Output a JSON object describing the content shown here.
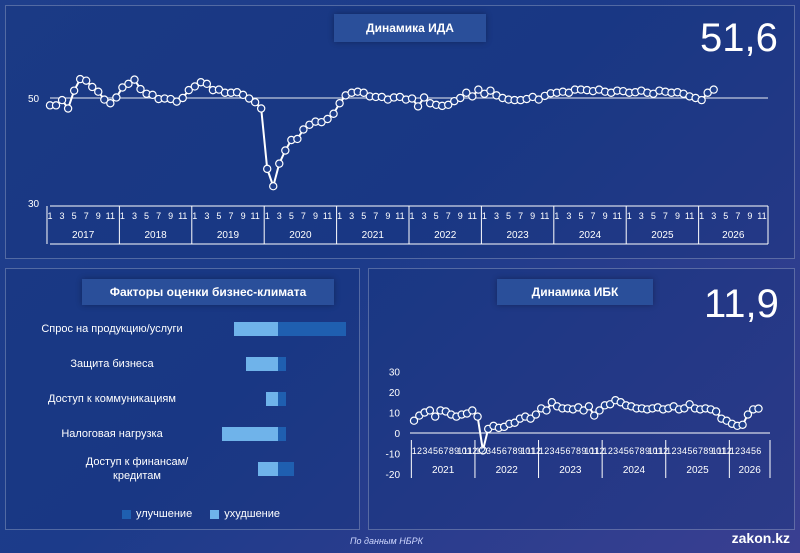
{
  "ida": {
    "title": "Динамика ИДА",
    "value": "51,6",
    "y_ticks": [
      "50",
      "30"
    ],
    "years": [
      "2017",
      "2018",
      "2019",
      "2020",
      "2021",
      "2022",
      "2023",
      "2024",
      "2025",
      "2026"
    ]
  },
  "factors": {
    "title": "Факторы оценки бизнес-климата",
    "labels": [
      "Спрос на продукцию/услуги",
      "Защита бизнеса",
      "Доступ к коммуникациям",
      "Налоговая нагрузка",
      "Доступ к финансам/кредитам"
    ],
    "legend_improve": "улучшение",
    "legend_worse": "ухудшение"
  },
  "ibk": {
    "title": "Динамика ИБК",
    "value": "11,9",
    "y_ticks": [
      "30",
      "20",
      "10",
      "0",
      "-10",
      "-20"
    ],
    "years": [
      "2021",
      "2022",
      "2023",
      "2024",
      "2025",
      "2026"
    ]
  },
  "footer": "По данным НБРК",
  "brand": "zakon.kz",
  "colors": {
    "improve": "#1f5fb0",
    "worse": "#6fb3ea",
    "line": "#ffffff"
  },
  "chart_data": [
    {
      "type": "line",
      "title": "Динамика ИДА",
      "ylim": [
        30,
        58
      ],
      "x_start": "2017-01",
      "values": [
        48.6,
        48.6,
        49.6,
        48.0,
        51.4,
        53.6,
        53.3,
        52.1,
        51.2,
        49.7,
        49.0,
        50.1,
        52.0,
        52.7,
        53.5,
        51.7,
        50.8,
        50.6,
        49.8,
        49.9,
        49.8,
        49.3,
        50.0,
        51.5,
        52.2,
        53.0,
        52.7,
        51.5,
        51.6,
        51.0,
        51.0,
        51.1,
        50.6,
        49.9,
        49.2,
        48.0,
        36.5,
        33.2,
        37.5,
        40.0,
        42.0,
        42.2,
        44.0,
        44.9,
        45.5,
        45.4,
        46.0,
        47.0,
        49.0,
        50.5,
        51.0,
        51.2,
        51.0,
        50.3,
        50.2,
        50.2,
        49.7,
        50.1,
        50.2,
        49.7,
        49.9,
        48.4,
        50.1,
        49.0,
        48.7,
        48.5,
        48.7,
        49.4,
        50.0,
        51.0,
        50.3,
        51.6,
        50.8,
        51.4,
        50.5,
        50.0,
        49.7,
        49.6,
        49.6,
        49.8,
        50.2,
        49.7,
        50.4,
        50.9,
        51.0,
        51.2,
        51.0,
        51.6,
        51.6,
        51.5,
        51.3,
        51.6,
        51.2,
        51.0,
        51.4,
        51.3,
        51.0,
        51.1,
        51.4,
        51.0,
        50.8,
        51.4,
        51.2,
        51.0,
        51.1,
        50.8,
        50.3,
        50.0,
        49.6,
        51.0,
        51.6
      ],
      "years": [
        "2017",
        "2018",
        "2019",
        "2020",
        "2021",
        "2022",
        "2023",
        "2024",
        "2025",
        "2026"
      ],
      "tick_months": [
        "1",
        "3",
        "5",
        "7",
        "9",
        "11"
      ]
    },
    {
      "type": "bar",
      "title": "Факторы оценки бизнес-климата",
      "categories": [
        "Спрос на продукцию/услуги",
        "Защита бизнеса",
        "Доступ к коммуникациям",
        "Налоговая нагрузка",
        "Доступ к финансам/кредитам"
      ],
      "series": [
        {
          "name": "улучшение",
          "values": [
            17,
            2,
            2,
            2,
            4
          ]
        },
        {
          "name": "ухудшение",
          "values": [
            -11,
            -8,
            -3,
            -14,
            -5
          ]
        }
      ]
    },
    {
      "type": "line",
      "title": "Динамика ИБК",
      "ylim": [
        -20,
        30
      ],
      "x_start": "2021-01",
      "values": [
        6,
        8.5,
        10,
        11,
        8,
        11,
        10.5,
        9,
        8,
        9,
        9.5,
        11,
        8,
        -8.5,
        2,
        3.5,
        2.5,
        3,
        4.5,
        5,
        7,
        8,
        7,
        9,
        12,
        11,
        15,
        13,
        12,
        12,
        11.5,
        12.5,
        11,
        13,
        8.5,
        11,
        13.5,
        14,
        16,
        15,
        13.5,
        13,
        12,
        12,
        11.5,
        12,
        12.5,
        11.5,
        12,
        13,
        11.5,
        12,
        14,
        12,
        11.5,
        12,
        11.5,
        10.5,
        7,
        6,
        4.5,
        3.5,
        4,
        9,
        11.5,
        11.9
      ],
      "years": [
        "2021",
        "2022",
        "2023",
        "2024",
        "2025",
        "2026"
      ],
      "tick_months": [
        "1",
        "2",
        "3",
        "4",
        "5",
        "6",
        "7",
        "8",
        "9",
        "10",
        "11",
        "12"
      ]
    }
  ]
}
